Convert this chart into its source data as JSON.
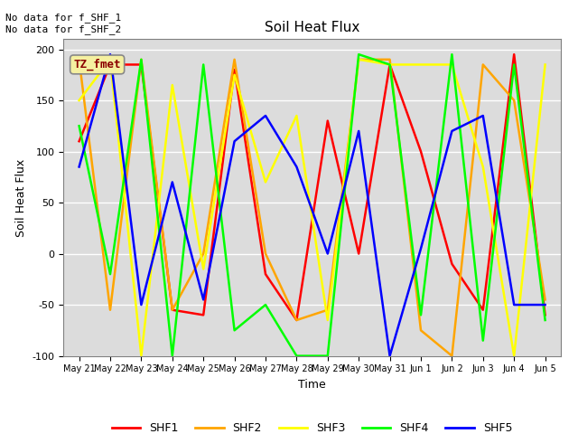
{
  "title": "Soil Heat Flux",
  "ylabel": "Soil Heat Flux",
  "xlabel": "Time",
  "ylim": [
    -100,
    210
  ],
  "yticks": [
    -100,
    -50,
    0,
    50,
    100,
    150,
    200
  ],
  "annotation_text": "No data for f_SHF_1\nNo data for f_SHF_2",
  "legend_box_text": "TZ_fmet",
  "background_color": "#dcdcdc",
  "x_labels": [
    "May 21",
    "May 22",
    "May 23",
    "May 24",
    "May 25",
    "May 26",
    "May 27",
    "May 28",
    "May 29",
    "May 30",
    "May 31",
    "Jun 1",
    "Jun 2",
    "Jun 3",
    "Jun 4",
    "Jun 5"
  ],
  "series": {
    "SHF1": {
      "color": "red",
      "x": [
        0,
        1,
        2,
        3,
        4,
        5,
        6,
        7,
        8,
        9,
        10,
        11,
        12,
        13,
        14,
        15
      ],
      "y": [
        110,
        185,
        185,
        -55,
        -60,
        180,
        -20,
        -65,
        130,
        0,
        185,
        100,
        -10,
        -55,
        195,
        -60
      ]
    },
    "SHF2": {
      "color": "orange",
      "x": [
        0,
        1,
        2,
        3,
        4,
        5,
        6,
        7,
        8,
        9,
        10,
        11,
        12,
        13,
        14,
        15
      ],
      "y": [
        190,
        -55,
        190,
        -55,
        0,
        190,
        0,
        -65,
        -55,
        190,
        190,
        -75,
        -100,
        185,
        150,
        -45
      ]
    },
    "SHF3": {
      "color": "yellow",
      "x": [
        0,
        1,
        2,
        3,
        4,
        5,
        6,
        7,
        8,
        9,
        10,
        11,
        12,
        13,
        14,
        15
      ],
      "y": [
        150,
        190,
        -100,
        165,
        -15,
        175,
        70,
        135,
        -65,
        190,
        185,
        185,
        185,
        85,
        -100,
        185
      ]
    },
    "SHF4": {
      "color": "lime",
      "x": [
        0,
        1,
        2,
        3,
        4,
        5,
        6,
        7,
        8,
        9,
        10,
        11,
        12,
        13,
        14,
        15
      ],
      "y": [
        125,
        -20,
        190,
        -100,
        185,
        -75,
        -50,
        -100,
        -100,
        195,
        185,
        -60,
        195,
        -85,
        185,
        -65
      ]
    },
    "SHF5": {
      "color": "blue",
      "x": [
        0,
        1,
        2,
        3,
        4,
        5,
        6,
        7,
        8,
        9,
        10,
        11,
        12,
        13,
        14,
        15
      ],
      "y": [
        85,
        195,
        -50,
        70,
        -45,
        110,
        135,
        85,
        0,
        120,
        -100,
        5,
        120,
        135,
        -50,
        -50
      ]
    }
  },
  "legend_entries": [
    {
      "label": "SHF1",
      "color": "red"
    },
    {
      "label": "SHF2",
      "color": "orange"
    },
    {
      "label": "SHF3",
      "color": "yellow"
    },
    {
      "label": "SHF4",
      "color": "lime"
    },
    {
      "label": "SHF5",
      "color": "blue"
    }
  ]
}
